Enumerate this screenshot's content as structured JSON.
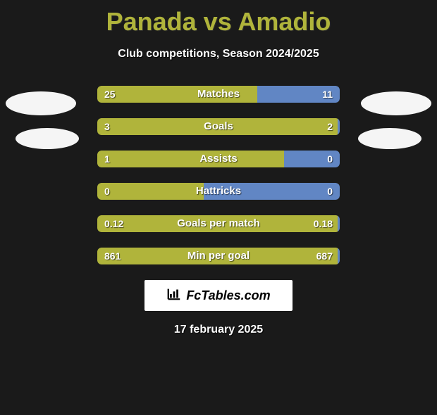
{
  "title": "Panada vs Amadio",
  "subtitle": "Club competitions, Season 2024/2025",
  "colors": {
    "accent_left": "#b0b43b",
    "accent_right": "#6186c4",
    "track_left": "#4d5125",
    "track_right": "#2d3d59",
    "title_color": "#b0b43b",
    "text": "#ffffff",
    "background": "#1a1a1a",
    "brand_bg": "#ffffff",
    "brand_text": "#000000"
  },
  "typography": {
    "title_fontsize": 36,
    "subtitle_fontsize": 16,
    "bar_label_fontsize": 15,
    "bar_value_fontsize": 14,
    "date_fontsize": 16,
    "font_family": "Arial"
  },
  "bars": [
    {
      "label": "Matches",
      "left_val": "25",
      "right_val": "11",
      "left_pct": 66,
      "right_pct": 34
    },
    {
      "label": "Goals",
      "left_val": "3",
      "right_val": "2",
      "left_pct": 99,
      "right_pct": 1
    },
    {
      "label": "Assists",
      "left_val": "1",
      "right_val": "0",
      "left_pct": 77,
      "right_pct": 23
    },
    {
      "label": "Hattricks",
      "left_val": "0",
      "right_val": "0",
      "left_pct": 44,
      "right_pct": 56
    },
    {
      "label": "Goals per match",
      "left_val": "0.12",
      "right_val": "0.18",
      "left_pct": 99,
      "right_pct": 1
    },
    {
      "label": "Min per goal",
      "left_val": "861",
      "right_val": "687",
      "left_pct": 99,
      "right_pct": 1
    }
  ],
  "brand": "FcTables.com",
  "date": "17 february 2025"
}
